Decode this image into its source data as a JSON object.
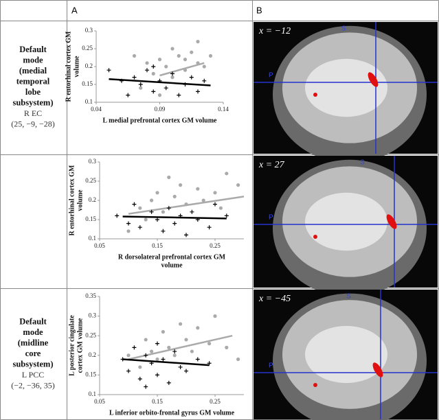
{
  "header": {
    "col_a": "A",
    "col_b": "B"
  },
  "rows": [
    {
      "label": [
        "Default",
        "mode",
        "(medial",
        "temporal",
        "lobe",
        "subsystem)"
      ],
      "region": "R EC",
      "coords": "(25, −9, −28)",
      "chart_data": {
        "type": "scatter",
        "ylabel": [
          "R entorhinal cortex GM",
          "volume"
        ],
        "xlabel": [
          "L medial prefrontal cortex GM volume"
        ],
        "xlim": [
          0.04,
          0.14
        ],
        "xticks": [
          0.04,
          0.09,
          0.14
        ],
        "ylim": [
          0.1,
          0.3
        ],
        "yticks": [
          0.1,
          0.15,
          0.2,
          0.25,
          0.3
        ],
        "series": [
          {
            "color": "#aaaaaa",
            "marker": "circle",
            "x": [
              0.07,
              0.08,
              0.085,
              0.09,
              0.095,
              0.1,
              0.1,
              0.105,
              0.11,
              0.115,
              0.12,
              0.12,
              0.125,
              0.09,
              0.075,
              0.11,
              0.13
            ],
            "values": [
              0.23,
              0.21,
              0.18,
              0.22,
              0.2,
              0.25,
              0.17,
              0.23,
              0.19,
              0.24,
              0.21,
              0.27,
              0.2,
              0.12,
              0.14,
              0.22,
              0.23
            ],
            "trend": {
              "x": [
                0.09,
                0.125
              ],
              "values": [
                0.175,
                0.21
              ]
            }
          },
          {
            "color": "#000000",
            "marker": "plus",
            "x": [
              0.05,
              0.06,
              0.065,
              0.07,
              0.075,
              0.08,
              0.085,
              0.09,
              0.095,
              0.1,
              0.105,
              0.11,
              0.115,
              0.12,
              0.125,
              0.085
            ],
            "values": [
              0.19,
              0.16,
              0.12,
              0.17,
              0.15,
              0.19,
              0.13,
              0.16,
              0.14,
              0.18,
              0.12,
              0.15,
              0.17,
              0.13,
              0.16,
              0.2
            ],
            "trend": {
              "x": [
                0.05,
                0.13
              ],
              "values": [
                0.165,
                0.147
              ]
            }
          }
        ]
      },
      "brain": {
        "slice": "x = −12",
        "s": "S",
        "p": "P"
      }
    },
    {
      "chart_data": {
        "type": "scatter",
        "ylabel": [
          "R entorhinal cortex GM",
          "volume"
        ],
        "xlabel": [
          "R dorsolateral prefrontal cortex GM",
          "volume"
        ],
        "xlim": [
          0.05,
          0.3
        ],
        "xticks": [
          0.05,
          0.15,
          0.25
        ],
        "ylim": [
          0.1,
          0.3
        ],
        "yticks": [
          0.1,
          0.15,
          0.2,
          0.25,
          0.3
        ],
        "series": [
          {
            "color": "#aaaaaa",
            "marker": "circle",
            "x": [
              0.1,
              0.12,
              0.14,
              0.15,
              0.16,
              0.18,
              0.19,
              0.2,
              0.22,
              0.23,
              0.25,
              0.26,
              0.27,
              0.29,
              0.17,
              0.13
            ],
            "values": [
              0.12,
              0.18,
              0.2,
              0.22,
              0.17,
              0.21,
              0.24,
              0.19,
              0.23,
              0.2,
              0.22,
              0.18,
              0.27,
              0.24,
              0.26,
              0.15
            ],
            "trend": {
              "x": [
                0.1,
                0.3
              ],
              "values": [
                0.165,
                0.21
              ]
            }
          },
          {
            "color": "#000000",
            "marker": "plus",
            "x": [
              0.08,
              0.1,
              0.11,
              0.12,
              0.14,
              0.15,
              0.16,
              0.17,
              0.18,
              0.19,
              0.2,
              0.21,
              0.22,
              0.24,
              0.25,
              0.27
            ],
            "values": [
              0.16,
              0.14,
              0.19,
              0.13,
              0.17,
              0.15,
              0.12,
              0.18,
              0.14,
              0.16,
              0.11,
              0.17,
              0.15,
              0.13,
              0.19,
              0.16
            ],
            "trend": {
              "x": [
                0.09,
                0.27
              ],
              "values": [
                0.158,
                0.153
              ]
            }
          }
        ]
      },
      "brain": {
        "slice": "x = 27",
        "s": "S",
        "p": "P"
      }
    },
    {
      "label": [
        "Default",
        "mode",
        "(midline",
        "core",
        "subsystem)"
      ],
      "region": "L PCC",
      "coords": "(−2, −36, 35)",
      "chart_data": {
        "type": "scatter",
        "ylabel": [
          "L posterior cingulate",
          "cortex GM volume"
        ],
        "xlabel": [
          "L inferior orbito-frontal gyrus GM volume"
        ],
        "xlim": [
          0.05,
          0.3
        ],
        "xticks": [
          0.05,
          0.15,
          0.25
        ],
        "ylim": [
          0.1,
          0.35
        ],
        "yticks": [
          0.1,
          0.15,
          0.2,
          0.25,
          0.3,
          0.35
        ],
        "series": [
          {
            "color": "#aaaaaa",
            "marker": "circle",
            "x": [
              0.1,
              0.12,
              0.13,
              0.14,
              0.15,
              0.16,
              0.17,
              0.18,
              0.19,
              0.2,
              0.21,
              0.22,
              0.24,
              0.25,
              0.27,
              0.29
            ],
            "values": [
              0.2,
              0.17,
              0.24,
              0.21,
              0.19,
              0.26,
              0.22,
              0.2,
              0.28,
              0.24,
              0.21,
              0.27,
              0.23,
              0.3,
              0.22,
              0.19
            ],
            "trend": {
              "x": [
                0.1,
                0.28
              ],
              "values": [
                0.19,
                0.25
              ]
            }
          },
          {
            "color": "#000000",
            "marker": "plus",
            "x": [
              0.09,
              0.1,
              0.11,
              0.12,
              0.13,
              0.13,
              0.14,
              0.15,
              0.15,
              0.16,
              0.17,
              0.18,
              0.19,
              0.2,
              0.22,
              0.24
            ],
            "values": [
              0.19,
              0.16,
              0.22,
              0.14,
              0.2,
              0.12,
              0.18,
              0.23,
              0.15,
              0.19,
              0.13,
              0.21,
              0.17,
              0.16,
              0.19,
              0.18
            ],
            "trend": {
              "x": [
                0.09,
                0.24
              ],
              "values": [
                0.19,
                0.175
              ]
            }
          }
        ]
      },
      "brain": {
        "slice": "x = −45",
        "s": "S",
        "p": "P"
      }
    }
  ]
}
